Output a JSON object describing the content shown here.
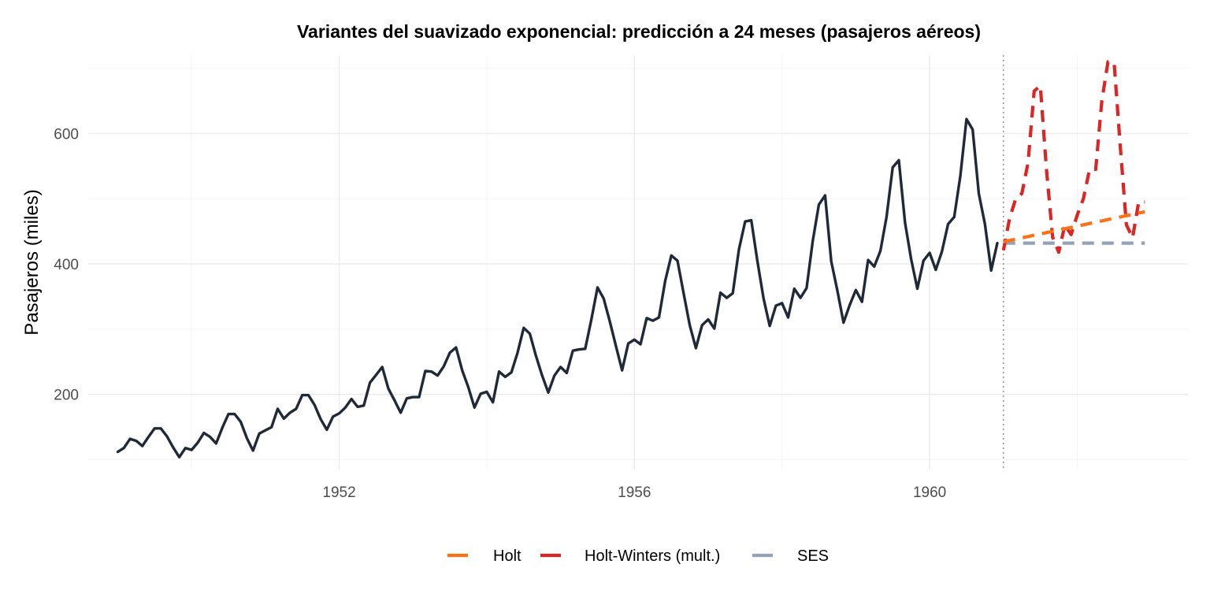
{
  "chart_data": {
    "type": "line",
    "title": "Variantes del suavizado exponencial: predicción a 24 meses (pasajeros aéreos)",
    "xlabel": "",
    "ylabel": "Pasajeros (miles)",
    "xlim": [
      1948.6,
      1963.5
    ],
    "ylim": [
      85,
      720
    ],
    "x_ticks": [
      1952,
      1956,
      1960
    ],
    "x_tick_labels": [
      "1952",
      "1956",
      "1960"
    ],
    "y_ticks": [
      200,
      400,
      600
    ],
    "y_tick_labels": [
      "200",
      "400",
      "600"
    ],
    "grid": true,
    "legend_position": "bottom",
    "forecast_start": 1961,
    "colors": {
      "observed": "#1f2937",
      "holt": "#f97316",
      "holt_winters": "#dc2626",
      "ses": "#94a3b8",
      "forecast_line": "#999999"
    },
    "observed": {
      "start_year": 1949,
      "values": [
        112,
        118,
        132,
        129,
        121,
        135,
        148,
        148,
        136,
        119,
        104,
        118,
        115,
        126,
        141,
        135,
        125,
        149,
        170,
        170,
        158,
        133,
        114,
        140,
        145,
        150,
        178,
        163,
        172,
        178,
        199,
        199,
        184,
        162,
        146,
        166,
        171,
        180,
        193,
        181,
        183,
        218,
        230,
        242,
        209,
        191,
        172,
        194,
        196,
        196,
        236,
        235,
        229,
        243,
        264,
        272,
        237,
        211,
        180,
        201,
        204,
        188,
        235,
        227,
        234,
        264,
        302,
        293,
        259,
        229,
        203,
        229,
        242,
        233,
        267,
        269,
        270,
        315,
        364,
        347,
        312,
        274,
        237,
        278,
        284,
        277,
        317,
        313,
        318,
        374,
        413,
        405,
        355,
        306,
        271,
        306,
        315,
        301,
        356,
        348,
        355,
        422,
        465,
        467,
        404,
        347,
        305,
        336,
        340,
        318,
        362,
        348,
        363,
        435,
        491,
        505,
        404,
        359,
        310,
        337,
        360,
        342,
        406,
        396,
        420,
        472,
        548,
        559,
        463,
        407,
        362,
        405,
        417,
        391,
        419,
        461,
        472,
        535,
        622,
        606,
        508,
        461,
        390,
        432
      ]
    },
    "series": [
      {
        "name": "Holt",
        "key": "holt",
        "start_year": 1961,
        "values": [
          434,
          436,
          438,
          440,
          442,
          444,
          446,
          448,
          450,
          452,
          454,
          456,
          458,
          460,
          462,
          464,
          466,
          468,
          470,
          472,
          474,
          476,
          478,
          480
        ]
      },
      {
        "name": "Holt-Winters (mult.)",
        "key": "holt_winters",
        "start_year": 1961,
        "values": [
          421,
          470,
          500,
          508,
          555,
          665,
          673,
          545,
          441,
          418,
          460,
          445,
          475,
          500,
          545,
          545,
          650,
          710,
          708,
          580,
          460,
          440,
          495,
          495
        ]
      },
      {
        "name": "SES",
        "key": "ses",
        "start_year": 1961,
        "values": [
          432,
          432,
          432,
          432,
          432,
          432,
          432,
          432,
          432,
          432,
          432,
          432,
          432,
          432,
          432,
          432,
          432,
          432,
          432,
          432,
          432,
          432,
          432,
          432
        ]
      }
    ]
  }
}
